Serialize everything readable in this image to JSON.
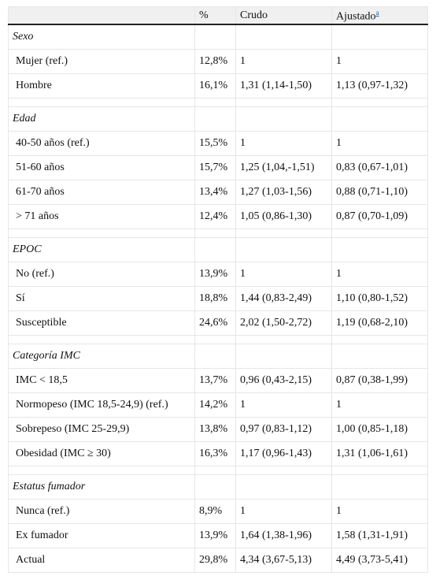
{
  "header": {
    "c1": "",
    "c2": "%",
    "c3": "Crudo",
    "c4": "Ajustado",
    "c4_sup": "a"
  },
  "sections": [
    {
      "title": "Sexo",
      "rows": [
        {
          "label": "Mujer (ref.)",
          "pct": "12,8%",
          "crudo": "1",
          "ajustado": "1"
        },
        {
          "label": "Hombre",
          "pct": "16,1%",
          "crudo": "1,31 (1,14-1,50)",
          "ajustado": "1,13 (0,97-1,32)"
        }
      ]
    },
    {
      "title": "Edad",
      "rows": [
        {
          "label": "40-50 años (ref.)",
          "pct": "15,5%",
          "crudo": "1",
          "ajustado": "1"
        },
        {
          "label": "51-60 años",
          "pct": "15,7%",
          "crudo": "1,25 (1,04,-1,51)",
          "ajustado": "0,83 (0,67-1,01)"
        },
        {
          "label": "61-70 años",
          "pct": "13,4%",
          "crudo": "1,27 (1,03-1,56)",
          "ajustado": "0,88 (0,71-1,10)"
        },
        {
          "label": "> 71 años",
          "pct": "12,4%",
          "crudo": "1,05 (0,86-1,30)",
          "ajustado": "0,87 (0,70-1,09)"
        }
      ]
    },
    {
      "title": "EPOC",
      "rows": [
        {
          "label": "No (ref.)",
          "pct": "13,9%",
          "crudo": "1",
          "ajustado": "1"
        },
        {
          "label": "Sí",
          "pct": "18,8%",
          "crudo": "1,44 (0,83-2,49)",
          "ajustado": "1,10 (0,80-1,52)"
        },
        {
          "label": "Susceptible",
          "pct": "24,6%",
          "crudo": "2,02 (1,50-2,72)",
          "ajustado": "1,19 (0,68-2,10)"
        }
      ]
    },
    {
      "title": "Categoría IMC",
      "rows": [
        {
          "label": "IMC < 18,5",
          "pct": "13,7%",
          "crudo": "0,96 (0,43-2,15)",
          "ajustado": "0,87 (0,38-1,99)"
        },
        {
          "label": "Normopeso (IMC 18,5-24,9) (ref.)",
          "pct": "14,2%",
          "crudo": "1",
          "ajustado": "1"
        },
        {
          "label": "Sobrepeso (IMC 25-29,9)",
          "pct": "13,8%",
          "crudo": "0,97 (0,83-1,12)",
          "ajustado": "1,00 (0,85-1,18)"
        },
        {
          "label": "Obesidad (IMC ≥ 30)",
          "pct": "16,3%",
          "crudo": "1,17 (0,96-1,43)",
          "ajustado": "1,31 (1,06-1,61)"
        }
      ]
    },
    {
      "title": "Estatus fumador",
      "rows": [
        {
          "label": "Nunca (ref.)",
          "pct": "8,9%",
          "crudo": "1",
          "ajustado": "1"
        },
        {
          "label": "Ex fumador",
          "pct": "13,9%",
          "crudo": "1,64 (1,38-1,96)",
          "ajustado": "1,58 (1,31-1,91)"
        },
        {
          "label": "Actual",
          "pct": "29,8%",
          "crudo": "4,34 (3,67-5,13)",
          "ajustado": "4,49 (3,73-5,41)"
        }
      ]
    }
  ]
}
